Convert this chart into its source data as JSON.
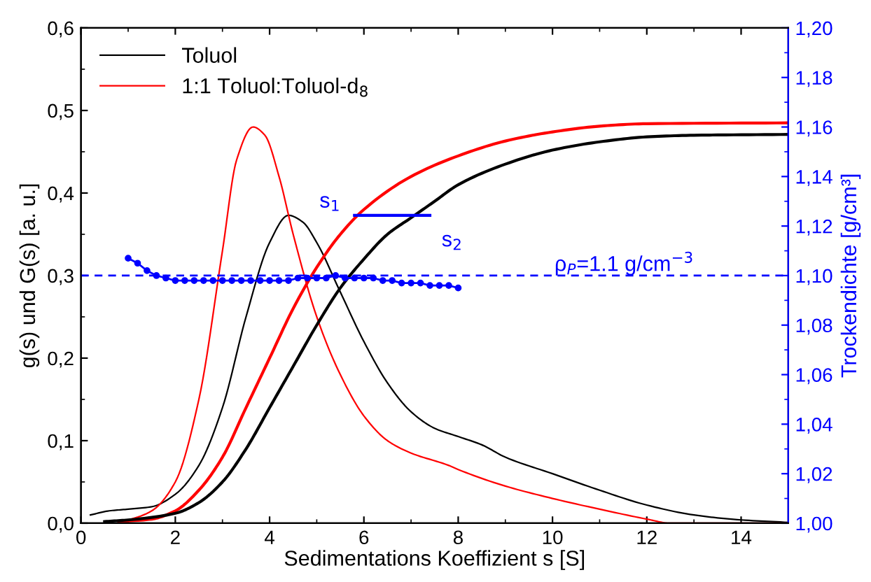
{
  "chart_data": {
    "type": "line",
    "xlabel": "Sedimentations Koeffizient s [S]",
    "ylabel": "g(s) und G(s) [a. u.]",
    "y2label": "Trockendichte [g/cm³]",
    "xlim": [
      0,
      15
    ],
    "xticks": [
      0,
      2,
      4,
      6,
      8,
      10,
      12,
      14
    ],
    "ylim": [
      0,
      0.6
    ],
    "yticks": [
      {
        "value": 0,
        "label": "0,0"
      },
      {
        "value": 0.1,
        "label": "0,1"
      },
      {
        "value": 0.2,
        "label": "0,2"
      },
      {
        "value": 0.3,
        "label": "0,3"
      },
      {
        "value": 0.4,
        "label": "0,4"
      },
      {
        "value": 0.5,
        "label": "0,5"
      },
      {
        "value": 0.6,
        "label": "0,6"
      }
    ],
    "y2lim": [
      1.0,
      1.2
    ],
    "y2ticks": [
      {
        "value": 1.0,
        "label": "1,00"
      },
      {
        "value": 1.02,
        "label": "1,02"
      },
      {
        "value": 1.04,
        "label": "1,04"
      },
      {
        "value": 1.06,
        "label": "1,06"
      },
      {
        "value": 1.08,
        "label": "1,08"
      },
      {
        "value": 1.1,
        "label": "1,10"
      },
      {
        "value": 1.12,
        "label": "1,12"
      },
      {
        "value": 1.14,
        "label": "1,14"
      },
      {
        "value": 1.16,
        "label": "1,16"
      },
      {
        "value": 1.18,
        "label": "1,18"
      },
      {
        "value": 1.2,
        "label": "1,20"
      }
    ],
    "grid": false,
    "legend": "top left",
    "series": [
      {
        "name": "Toluol",
        "color": "#000000",
        "x": [
          0.2,
          0.6,
          1.0,
          1.5,
          2.0,
          2.5,
          3.0,
          3.5,
          4.0,
          4.4,
          4.7,
          5.0,
          5.5,
          6.0,
          6.5,
          7.0,
          7.5,
          8.0,
          8.5,
          9.0,
          10.0,
          11.0,
          12.0,
          13.0,
          14.0,
          15.0
        ],
        "values": [
          0.01,
          0.015,
          0.017,
          0.02,
          0.035,
          0.07,
          0.14,
          0.25,
          0.34,
          0.373,
          0.365,
          0.34,
          0.28,
          0.22,
          0.17,
          0.135,
          0.115,
          0.105,
          0.095,
          0.08,
          0.06,
          0.04,
          0.022,
          0.01,
          0.004,
          0.001
        ]
      },
      {
        "name": "1:1 Toluol:Toluol-d$_{8}$",
        "color": "#ff0000",
        "x": [
          0.8,
          1.5,
          2.0,
          2.5,
          3.0,
          3.3,
          3.65,
          3.9,
          4.2,
          4.5,
          5.0,
          5.5,
          6.0,
          6.5,
          7.0,
          7.8,
          8.0,
          9.0,
          10.0,
          11.0,
          12.0,
          12.5,
          15.0
        ],
        "values": [
          0.0,
          0.015,
          0.05,
          0.15,
          0.33,
          0.44,
          0.48,
          0.47,
          0.42,
          0.35,
          0.25,
          0.18,
          0.13,
          0.1,
          0.085,
          0.07,
          0.065,
          0.045,
          0.03,
          0.017,
          0.005,
          0.0,
          0.0
        ]
      },
      {
        "color": "#ff0000",
        "x": [
          0.8,
          1.5,
          2.0,
          2.5,
          3.0,
          3.5,
          4.0,
          4.5,
          5.0,
          5.5,
          6.0,
          7.0,
          8.0,
          9.0,
          10.0,
          11.0,
          12.0,
          15.0
        ],
        "values": [
          0.002,
          0.005,
          0.015,
          0.04,
          0.08,
          0.14,
          0.2,
          0.26,
          0.31,
          0.35,
          0.38,
          0.42,
          0.445,
          0.463,
          0.474,
          0.481,
          0.484,
          0.485
        ]
      },
      {
        "color": "#000000",
        "x": [
          0.5,
          1.0,
          2.0,
          2.5,
          3.0,
          3.5,
          4.0,
          4.5,
          5.0,
          5.5,
          6.0,
          6.5,
          7.0,
          7.5,
          8.0,
          9.0,
          10.0,
          11.0,
          12.0,
          13.0,
          15.0
        ],
        "values": [
          0.002,
          0.004,
          0.012,
          0.025,
          0.05,
          0.09,
          0.14,
          0.19,
          0.24,
          0.285,
          0.32,
          0.35,
          0.37,
          0.39,
          0.41,
          0.435,
          0.452,
          0.462,
          0.468,
          0.47,
          0.471
        ]
      },
      {
        "color": "#0000ff",
        "x": [
          5.8,
          7.4
        ],
        "values": [
          0.373,
          0.373
        ]
      },
      {
        "color": "#0000ff",
        "axis": "y2",
        "marker": "circle",
        "line_style": "solid",
        "x": [
          1.0,
          1.2,
          1.4,
          1.6,
          1.8,
          2.0,
          2.2,
          2.4,
          2.6,
          2.8,
          3.0,
          3.2,
          3.4,
          3.6,
          3.8,
          4.0,
          4.2,
          4.4,
          4.6,
          4.8,
          5.0,
          5.2,
          5.4,
          5.6,
          5.8,
          6.0,
          6.2,
          6.4,
          6.6,
          6.8,
          7.0,
          7.2,
          7.4,
          7.6,
          7.8,
          8.0
        ],
        "values": [
          1.107,
          1.105,
          1.102,
          1.1,
          1.099,
          1.098,
          1.098,
          1.098,
          1.098,
          1.098,
          1.098,
          1.098,
          1.098,
          1.098,
          1.098,
          1.098,
          1.098,
          1.098,
          1.099,
          1.099,
          1.099,
          1.099,
          1.1,
          1.099,
          1.099,
          1.099,
          1.099,
          1.098,
          1.098,
          1.097,
          1.097,
          1.097,
          1.096,
          1.096,
          1.096,
          1.095
        ]
      }
    ],
    "ref_lines": [
      {
        "axis": "y2",
        "value": 1.1,
        "label": "ρ$_{P}$=1.1 g/cm$^{−3}$",
        "color": "#0000ff",
        "line_style": "dashed"
      }
    ],
    "annotations": [
      {
        "text": "s$_{1}$",
        "x": 5.8,
        "y": 0.373
      },
      {
        "text": "s$_{2}$",
        "x": 7.4,
        "y": 0.373
      }
    ]
  }
}
